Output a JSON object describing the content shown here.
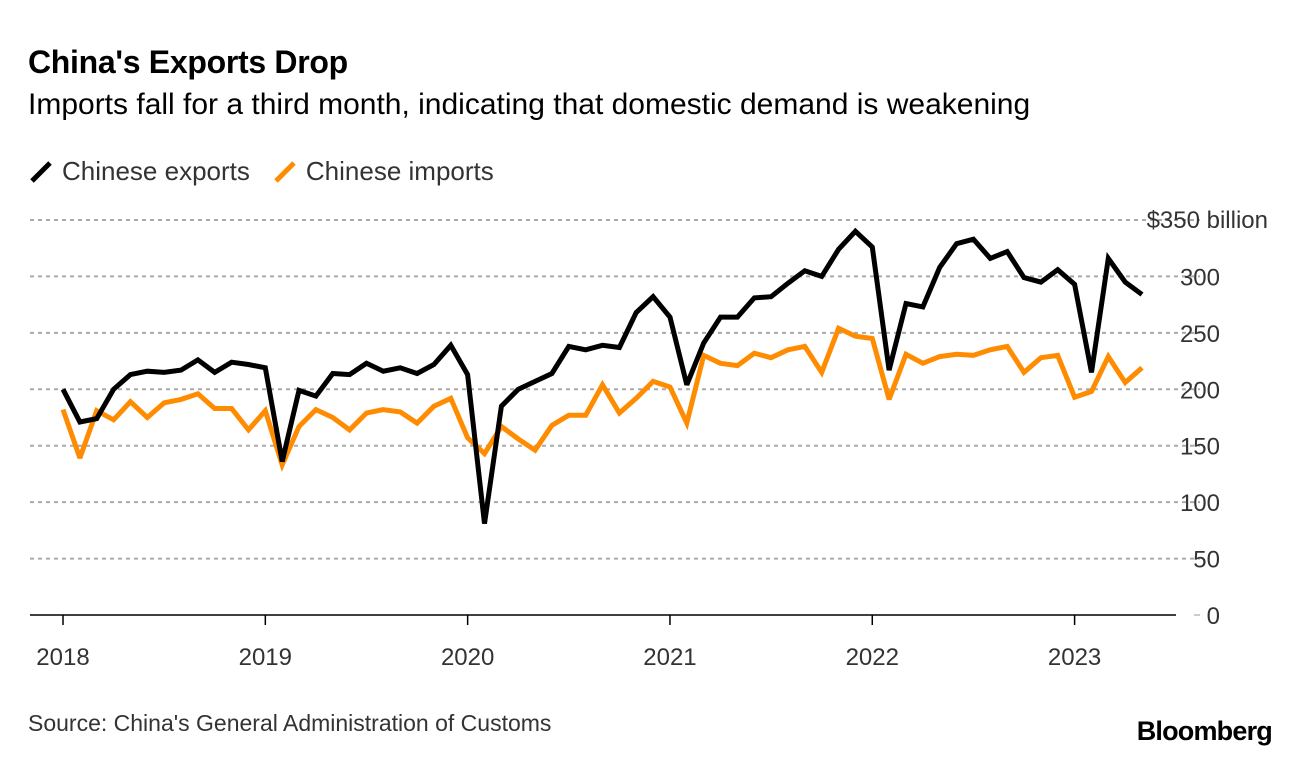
{
  "title": "China's Exports Drop",
  "subtitle": "Imports fall for a third month, indicating that domestic demand is weakening",
  "source": "Source: China's General Administration of Customs",
  "logo": "Bloomberg",
  "chart_data": {
    "type": "line",
    "title": "China's Exports Drop",
    "subtitle": "Imports fall for a third month, indicating that domestic demand is weakening",
    "x_start": "2018-01",
    "x_end": "2023-05",
    "x_frequency": "monthly",
    "x_ticks": [
      "2018",
      "2019",
      "2020",
      "2021",
      "2022",
      "2023"
    ],
    "y_ticks": [
      0,
      50,
      100,
      150,
      200,
      250,
      300,
      350
    ],
    "y_top_label": "$350 billion",
    "ylim": [
      0,
      350
    ],
    "grid": true,
    "legend_position": "top-left",
    "series": [
      {
        "name": "Chinese exports",
        "color": "#000000",
        "values": [
          200,
          171,
          174,
          200,
          213,
          216,
          215,
          217,
          226,
          215,
          224,
          222,
          219,
          136,
          199,
          194,
          214,
          213,
          223,
          216,
          219,
          214,
          222,
          239,
          213,
          81,
          185,
          200,
          207,
          214,
          238,
          235,
          239,
          237,
          268,
          282,
          264,
          204,
          241,
          264,
          264,
          281,
          282,
          294,
          305,
          300,
          324,
          340,
          326,
          217,
          276,
          273,
          308,
          329,
          333,
          316,
          322,
          299,
          295,
          306,
          293,
          215,
          316,
          295,
          284
        ]
      },
      {
        "name": "Chinese imports",
        "color": "#ff8c00",
        "values": [
          182,
          139,
          181,
          173,
          189,
          175,
          188,
          191,
          196,
          183,
          183,
          164,
          181,
          133,
          167,
          182,
          175,
          164,
          179,
          182,
          180,
          170,
          185,
          192,
          157,
          143,
          167,
          156,
          146,
          168,
          177,
          177,
          204,
          179,
          192,
          207,
          202,
          170,
          230,
          223,
          221,
          232,
          228,
          235,
          238,
          215,
          254,
          247,
          245,
          191,
          231,
          223,
          229,
          231,
          230,
          235,
          238,
          215,
          228,
          230,
          193,
          198,
          229,
          206,
          219
        ]
      }
    ]
  }
}
